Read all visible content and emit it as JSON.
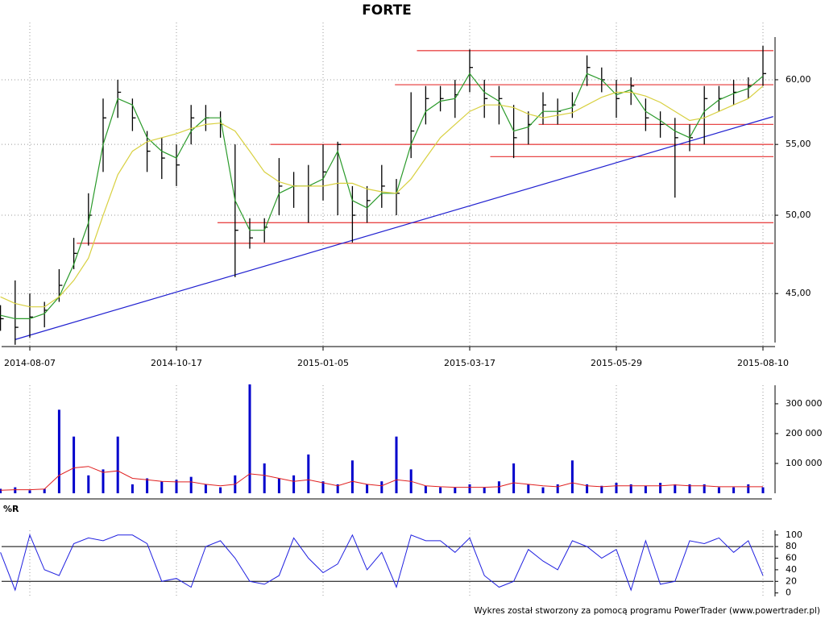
{
  "chart_data": [
    {
      "type": "ohlc",
      "title": "FORTE",
      "categories": [
        null,
        null,
        "2014-08-07",
        null,
        null,
        null,
        null,
        null,
        null,
        null,
        null,
        null,
        "2014-10-17",
        null,
        null,
        null,
        null,
        null,
        null,
        null,
        null,
        null,
        "2015-01-05",
        null,
        null,
        null,
        null,
        null,
        null,
        null,
        null,
        null,
        "2015-03-17",
        null,
        null,
        null,
        null,
        null,
        null,
        null,
        null,
        null,
        "2015-05-29",
        null,
        null,
        null,
        null,
        null,
        null,
        null,
        null,
        null,
        "2015-08-10"
      ],
      "high": [
        44.3,
        45.8,
        45,
        44.5,
        46.5,
        48.5,
        51.5,
        58.5,
        60,
        58.5,
        56,
        55.5,
        55,
        58,
        58,
        57.5,
        55,
        49.8,
        49.8,
        54,
        53,
        53.5,
        55,
        55.2,
        52,
        52,
        53.5,
        52.5,
        59,
        59.5,
        59.5,
        60,
        62.5,
        60,
        59.5,
        58,
        57.5,
        59,
        58.5,
        59,
        62,
        61,
        60,
        60.2,
        58.5,
        57.5,
        57,
        56.5,
        59.5,
        59.5,
        60,
        60.2,
        62.8
      ],
      "low": [
        42.8,
        42,
        42.4,
        43,
        44.5,
        46.5,
        48,
        53,
        57,
        56,
        53,
        52.5,
        52,
        55,
        56,
        55.5,
        46,
        47.8,
        48.2,
        50,
        50.5,
        49.5,
        51,
        50,
        48.2,
        49.5,
        50.5,
        50,
        54,
        56.5,
        57.5,
        57,
        59,
        57,
        56.5,
        54,
        55,
        56.5,
        56.5,
        57,
        59.5,
        59,
        57,
        58,
        56,
        55.5,
        51.2,
        54.5,
        55,
        57.5,
        58,
        58.5,
        59.5
      ],
      "close": [
        43.5,
        43,
        43.6,
        44,
        45.5,
        47.5,
        50,
        57,
        59,
        57,
        54.5,
        54,
        53.5,
        57,
        57,
        56.5,
        49,
        48.5,
        49.2,
        52,
        52,
        52,
        53,
        55,
        50,
        51,
        52,
        51.5,
        56,
        58.5,
        58.5,
        58.8,
        61,
        58.5,
        58.5,
        55.5,
        56.5,
        58,
        57.5,
        58,
        61,
        60,
        58.5,
        59.5,
        57,
        56.5,
        55.5,
        55.5,
        58.5,
        58.5,
        59,
        59.5,
        60.5
      ],
      "color": "#000000",
      "averages": [
        {
          "color": "#2a9a2a",
          "values": [
            43.7,
            43.5,
            43.5,
            43.8,
            44.8,
            46.8,
            49.5,
            55,
            58.5,
            58,
            55.5,
            54.5,
            54,
            56,
            57,
            57,
            51,
            49,
            49,
            51.5,
            52,
            52,
            52.5,
            54.5,
            51,
            50.5,
            51.5,
            51.5,
            55,
            57.5,
            58.3,
            58.5,
            60.5,
            59,
            58.3,
            56,
            56.3,
            57.5,
            57.5,
            57.8,
            60.5,
            60,
            58.8,
            59.2,
            57.5,
            56.8,
            56,
            55.5,
            57.5,
            58.4,
            58.9,
            59.3,
            60.3
          ]
        },
        {
          "color": "#d8d040",
          "values": [
            44.8,
            44.4,
            44.2,
            44.2,
            44.8,
            45.8,
            47.2,
            50,
            52.8,
            54.5,
            55.2,
            55.5,
            55.8,
            56.2,
            56.5,
            56.6,
            56,
            54.5,
            53,
            52.3,
            52,
            52,
            52,
            52.2,
            52.2,
            51.8,
            51.6,
            51.5,
            52.5,
            54,
            55.5,
            56.5,
            57.5,
            58,
            58,
            57.8,
            57.3,
            57,
            57.2,
            57.4,
            58,
            58.6,
            59,
            59,
            58.7,
            58.2,
            57.5,
            56.8,
            57,
            57.5,
            58,
            58.5,
            59.5
          ]
        }
      ],
      "levels": [
        {
          "value": 62.4,
          "start": 28.4
        },
        {
          "value": 59.6,
          "start": 26.9
        },
        {
          "value": 56.5,
          "start": 36.7
        },
        {
          "value": 55,
          "start": 18.4
        },
        {
          "value": 54.1,
          "start": 33.4
        },
        {
          "value": 49.5,
          "start": 14.8
        },
        {
          "value": 48.15,
          "start": 5.2
        }
      ],
      "level_color": "#e84848",
      "trendline": {
        "x": [
          1,
          52.7
        ],
        "values": [
          42.3,
          57.1
        ],
        "color": "#2020d0"
      },
      "ylim": [
        41.9,
        64.8
      ],
      "yticks": [
        {
          "value": 45,
          "label": "45,00"
        },
        {
          "value": 50,
          "label": "50,00"
        },
        {
          "value": 55,
          "label": "55,00"
        },
        {
          "value": 60,
          "label": "60,00"
        }
      ],
      "log_scale": true,
      "grid": true
    },
    {
      "type": "bar",
      "values": [
        15000,
        20000,
        10000,
        15000,
        280000,
        190000,
        60000,
        80000,
        190000,
        30000,
        50000,
        40000,
        45000,
        55000,
        30000,
        20000,
        60000,
        365000,
        100000,
        50000,
        60000,
        130000,
        40000,
        30000,
        110000,
        30000,
        40000,
        190000,
        80000,
        25000,
        20000,
        20000,
        30000,
        20000,
        40000,
        100000,
        30000,
        20000,
        30000,
        110000,
        30000,
        25000,
        35000,
        30000,
        25000,
        35000,
        30000,
        30000,
        30000,
        20000,
        20000,
        30000,
        20000
      ],
      "color": "#0000cc",
      "average": {
        "color": "#e02020",
        "values": [
          10000,
          12000,
          12000,
          14000,
          60000,
          85000,
          90000,
          70000,
          75000,
          50000,
          45000,
          40000,
          38000,
          38000,
          30000,
          25000,
          30000,
          65000,
          60000,
          50000,
          40000,
          45000,
          35000,
          25000,
          40000,
          30000,
          25000,
          45000,
          40000,
          25000,
          22000,
          20000,
          20000,
          20000,
          22000,
          35000,
          30000,
          25000,
          22000,
          35000,
          25000,
          22000,
          25000,
          25000,
          25000,
          25000,
          28000,
          25000,
          25000,
          22000,
          22000,
          22000,
          22000
        ]
      },
      "ylim": [
        0,
        362000
      ],
      "yticks": [
        {
          "value": 100000,
          "label": "100 000"
        },
        {
          "value": 200000,
          "label": "200 000"
        },
        {
          "value": 300000,
          "label": "300 000"
        }
      ],
      "grid": true
    },
    {
      "type": "line",
      "title": "%R",
      "values": [
        70,
        5,
        100,
        40,
        30,
        85,
        95,
        90,
        100,
        100,
        85,
        20,
        25,
        10,
        80,
        90,
        60,
        20,
        15,
        30,
        95,
        60,
        35,
        50,
        100,
        40,
        70,
        10,
        100,
        90,
        90,
        70,
        95,
        30,
        10,
        20,
        75,
        55,
        40,
        90,
        80,
        60,
        75,
        5,
        90,
        15,
        20,
        90,
        85,
        95,
        70,
        90,
        30
      ],
      "color": "#2020e0",
      "levels": [
        20,
        80
      ],
      "ylim": [
        -6,
        108
      ],
      "yticks": [
        0,
        20,
        40,
        60,
        80,
        100
      ],
      "grid": true
    }
  ],
  "footer": "Wykres został stworzony za pomocą programu PowerTrader (www.powertrader.pl)"
}
